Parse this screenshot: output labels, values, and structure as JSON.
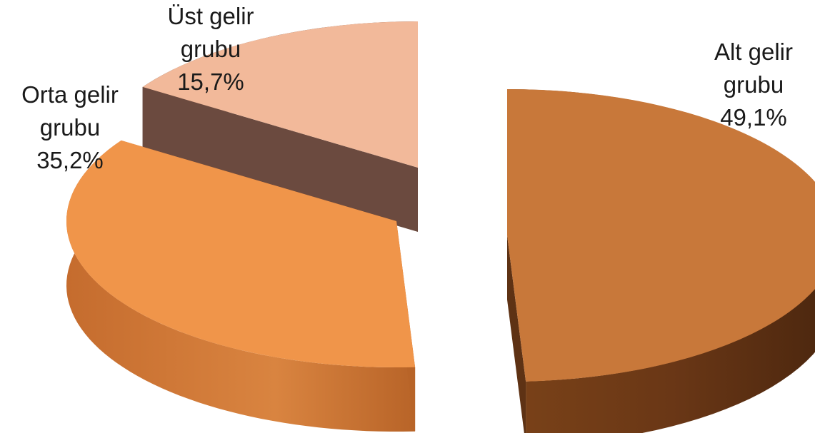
{
  "chart_data": {
    "type": "pie",
    "style": "3d-exploded",
    "title": "",
    "slices": [
      {
        "label_line1": "Alt gelir",
        "label_line2": "grubu",
        "value_text": "49,1%",
        "value": 49.1,
        "color": "#C8783A"
      },
      {
        "label_line1": "Orta gelir",
        "label_line2": "grubu",
        "value_text": "35,2%",
        "value": 35.2,
        "color": "#F0954A"
      },
      {
        "label_line1": "Üst gelir",
        "label_line2": "grubu",
        "value_text": "15,7%",
        "value": 15.7,
        "color": "#F2B99A"
      }
    ],
    "side_colors": [
      "#5E3214",
      "#B86428",
      "#6B4A3F"
    ]
  }
}
